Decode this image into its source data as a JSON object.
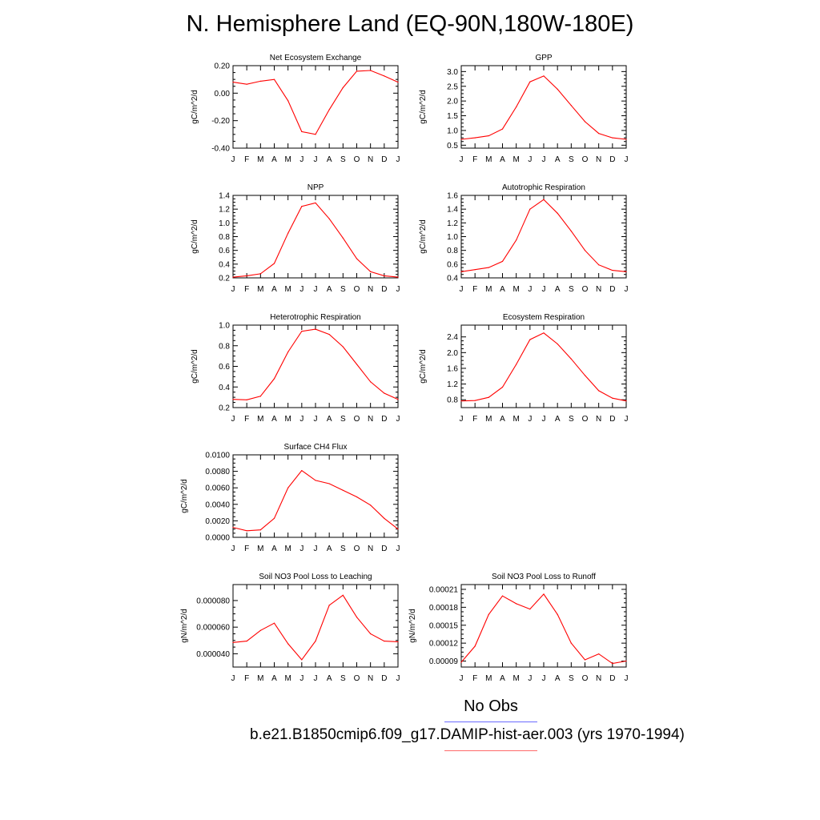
{
  "page": {
    "title": "N. Hemisphere Land (EQ-90N,180W-180E)",
    "legend": {
      "obs_label": "No Obs",
      "obs_color": "#6b6bff",
      "model_label": "b.e21.B1850cmip6.f09_g17.DAMIP-hist-aer.003 (yrs 1970-1994)",
      "model_color": "#ff6b6b"
    }
  },
  "chart_data": [
    {
      "type": "line",
      "title": "Net Ecosystem Exchange",
      "ylabel": "gC/m^2/d",
      "xlabel": "",
      "categories": [
        "J",
        "F",
        "M",
        "A",
        "M",
        "J",
        "J",
        "A",
        "S",
        "O",
        "N",
        "D",
        "J"
      ],
      "ylim": [
        -0.4,
        0.2
      ],
      "yticks": [
        -0.4,
        -0.2,
        0.0,
        0.2
      ],
      "ytick_labels": [
        "-0.40",
        "-0.20",
        "0.00",
        "0.20"
      ],
      "grid": false,
      "series": [
        {
          "color": "#ff0000",
          "values": [
            0.08,
            0.065,
            0.087,
            0.1,
            -0.055,
            -0.28,
            -0.3,
            -0.12,
            0.04,
            0.16,
            0.165,
            0.125,
            0.08
          ]
        }
      ]
    },
    {
      "type": "line",
      "title": "GPP",
      "ylabel": "gC/m^2/d",
      "xlabel": "",
      "categories": [
        "J",
        "F",
        "M",
        "A",
        "M",
        "J",
        "J",
        "A",
        "S",
        "O",
        "N",
        "D",
        "J"
      ],
      "ylim": [
        0.4,
        3.2
      ],
      "yticks": [
        0.5,
        1.0,
        1.5,
        2.0,
        2.5,
        3.0
      ],
      "ytick_labels": [
        "0.5",
        "1.0",
        "1.5",
        "2.0",
        "2.5",
        "3.0"
      ],
      "grid": false,
      "series": [
        {
          "color": "#ff0000",
          "values": [
            0.7,
            0.75,
            0.82,
            1.05,
            1.8,
            2.65,
            2.85,
            2.4,
            1.85,
            1.3,
            0.9,
            0.75,
            0.7
          ]
        }
      ]
    },
    {
      "type": "line",
      "title": "NPP",
      "ylabel": "gC/m^2/d",
      "xlabel": "",
      "categories": [
        "J",
        "F",
        "M",
        "A",
        "M",
        "J",
        "J",
        "A",
        "S",
        "O",
        "N",
        "D",
        "J"
      ],
      "ylim": [
        0.2,
        1.4
      ],
      "yticks": [
        0.2,
        0.4,
        0.6,
        0.8,
        1.0,
        1.2,
        1.4
      ],
      "ytick_labels": [
        "0.2",
        "0.4",
        "0.6",
        "0.8",
        "1.0",
        "1.2",
        "1.4"
      ],
      "grid": false,
      "series": [
        {
          "color": "#ff0000",
          "values": [
            0.21,
            0.23,
            0.26,
            0.41,
            0.85,
            1.24,
            1.29,
            1.06,
            0.78,
            0.48,
            0.29,
            0.23,
            0.21
          ]
        }
      ]
    },
    {
      "type": "line",
      "title": "Autotrophic Respiration",
      "ylabel": "gC/m^2/d",
      "xlabel": "",
      "categories": [
        "J",
        "F",
        "M",
        "A",
        "M",
        "J",
        "J",
        "A",
        "S",
        "O",
        "N",
        "D",
        "J"
      ],
      "ylim": [
        0.4,
        1.6
      ],
      "yticks": [
        0.4,
        0.6,
        0.8,
        1.0,
        1.2,
        1.4,
        1.6
      ],
      "ytick_labels": [
        "0.4",
        "0.6",
        "0.8",
        "1.0",
        "1.2",
        "1.4",
        "1.6"
      ],
      "grid": false,
      "series": [
        {
          "color": "#ff0000",
          "values": [
            0.49,
            0.52,
            0.55,
            0.64,
            0.95,
            1.4,
            1.54,
            1.34,
            1.08,
            0.8,
            0.59,
            0.51,
            0.49
          ]
        }
      ]
    },
    {
      "type": "line",
      "title": "Heterotrophic Respiration",
      "ylabel": "gC/m^2/d",
      "xlabel": "",
      "categories": [
        "J",
        "F",
        "M",
        "A",
        "M",
        "J",
        "J",
        "A",
        "S",
        "O",
        "N",
        "D",
        "J"
      ],
      "ylim": [
        0.2,
        1.0
      ],
      "yticks": [
        0.2,
        0.4,
        0.6,
        0.8,
        1.0
      ],
      "ytick_labels": [
        "0.2",
        "0.4",
        "0.6",
        "0.8",
        "1.0"
      ],
      "grid": false,
      "series": [
        {
          "color": "#ff0000",
          "values": [
            0.28,
            0.275,
            0.31,
            0.48,
            0.74,
            0.94,
            0.96,
            0.91,
            0.79,
            0.62,
            0.45,
            0.34,
            0.28
          ]
        }
      ]
    },
    {
      "type": "line",
      "title": "Ecosystem Respiration",
      "ylabel": "gC/m^2/d",
      "xlabel": "",
      "categories": [
        "J",
        "F",
        "M",
        "A",
        "M",
        "J",
        "J",
        "A",
        "S",
        "O",
        "N",
        "D",
        "J"
      ],
      "ylim": [
        0.6,
        2.7
      ],
      "yticks": [
        0.8,
        1.2,
        1.6,
        2.0,
        2.4
      ],
      "ytick_labels": [
        "0.8",
        "1.2",
        "1.6",
        "2.0",
        "2.4"
      ],
      "grid": false,
      "series": [
        {
          "color": "#ff0000",
          "values": [
            0.77,
            0.78,
            0.86,
            1.12,
            1.7,
            2.33,
            2.5,
            2.22,
            1.84,
            1.42,
            1.03,
            0.84,
            0.77
          ]
        }
      ]
    },
    {
      "type": "line",
      "title": "Surface CH4 Flux",
      "ylabel": "gC/m^2/d",
      "xlabel": "",
      "categories": [
        "J",
        "F",
        "M",
        "A",
        "M",
        "J",
        "J",
        "A",
        "S",
        "O",
        "N",
        "D",
        "J"
      ],
      "ylim": [
        0.0,
        0.01
      ],
      "yticks": [
        0.0,
        0.002,
        0.004,
        0.006,
        0.008,
        0.01
      ],
      "ytick_labels": [
        "0.0000",
        "0.0020",
        "0.0040",
        "0.0060",
        "0.0080",
        "0.0100"
      ],
      "grid": false,
      "series": [
        {
          "color": "#ff0000",
          "values": [
            0.0012,
            0.0008,
            0.0009,
            0.0023,
            0.006,
            0.0081,
            0.0069,
            0.0065,
            0.0057,
            0.0049,
            0.0039,
            0.0023,
            0.001
          ]
        }
      ]
    },
    {
      "type": "line",
      "title": "Soil NO3 Pool Loss to Leaching",
      "ylabel": "gN/m^2/d",
      "xlabel": "",
      "categories": [
        "J",
        "F",
        "M",
        "A",
        "M",
        "J",
        "J",
        "A",
        "S",
        "O",
        "N",
        "D",
        "J"
      ],
      "ylim": [
        3e-05,
        9.2e-05
      ],
      "yticks": [
        4e-05,
        6e-05,
        8e-05
      ],
      "ytick_labels": [
        "0.000040",
        "0.000060",
        "0.000080"
      ],
      "grid": false,
      "series": [
        {
          "color": "#ff0000",
          "values": [
            4.85e-05,
            4.95e-05,
            5.75e-05,
            6.3e-05,
            4.75e-05,
            3.55e-05,
            4.95e-05,
            7.65e-05,
            8.4e-05,
            6.75e-05,
            5.5e-05,
            4.95e-05,
            4.9e-05
          ]
        }
      ]
    },
    {
      "type": "line",
      "title": "Soil NO3 Pool Loss to Runoff",
      "ylabel": "gN/m^2/d",
      "xlabel": "",
      "categories": [
        "J",
        "F",
        "M",
        "A",
        "M",
        "J",
        "J",
        "A",
        "S",
        "O",
        "N",
        "D",
        "J"
      ],
      "ylim": [
        8e-05,
        0.000218
      ],
      "yticks": [
        9e-05,
        0.00012,
        0.00015,
        0.00018,
        0.00021
      ],
      "ytick_labels": [
        "0.00009",
        "0.00012",
        "0.00015",
        "0.00018",
        "0.00021"
      ],
      "grid": false,
      "series": [
        {
          "color": "#ff0000",
          "values": [
            8.8e-05,
            0.000115,
            0.000168,
            0.000199,
            0.000186,
            0.000177,
            0.000202,
            0.000168,
            0.00012,
            9.2e-05,
            0.000102,
            8.6e-05,
            9e-05
          ]
        }
      ]
    }
  ]
}
